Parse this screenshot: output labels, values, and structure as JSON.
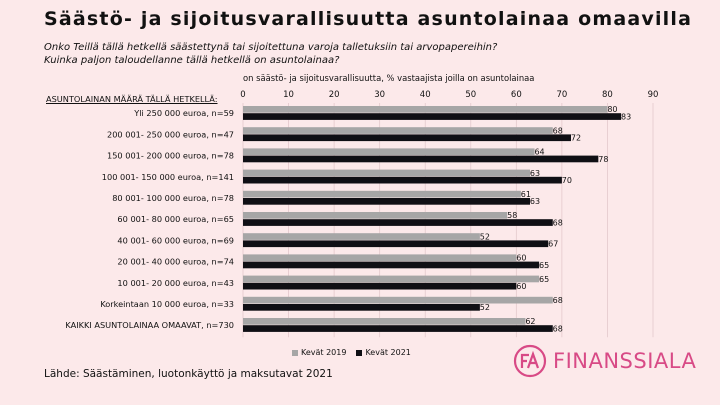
{
  "title": "Säästö- ja sijoitusvarallisuutta asuntolainaa omaavilla",
  "subtitle_line1": "Onko Teillä tällä hetkellä säästettynä tai sijoitettuna varoja talletuksiin tai arvopapereihin?",
  "subtitle_line2": "Kuinka paljon taloudellanne tällä hetkellä on asuntolainaa?",
  "row_header": "ASUNTOLAINAN MÄÄRÄ TÄLLÄ HETKELLÄ:",
  "source": "Lähde: Säästäminen, luotonkäyttö ja maksutavat 2021",
  "logo": {
    "mark": "FA",
    "text": "FINANSSIALA"
  },
  "colors": {
    "series_2019": "#a6a6a6",
    "series_2021": "#0f0f14",
    "background": "#fce9ea",
    "brand": "#d84a86"
  },
  "chart_data": {
    "type": "bar",
    "orientation": "horizontal",
    "xlabel": "on säästö- ja sijoitusvarallisuutta, % vastaajista joilla on asuntolainaa",
    "xlim": [
      0,
      90
    ],
    "xticks": [
      0,
      10,
      20,
      30,
      40,
      50,
      60,
      70,
      80,
      90
    ],
    "grid": true,
    "legend_position": "bottom",
    "categories": [
      "Yli 250 000 euroa, n=59",
      "200 001- 250 000 euroa, n=47",
      "150 001- 200 000 euroa, n=78",
      "100 001- 150 000 euroa, n=141",
      "80 001- 100 000 euroa, n=78",
      "60 001- 80 000 euroa, n=65",
      "40 001- 60 000 euroa, n=69",
      "20 001- 40 000 euroa, n=74",
      "10 001- 20 000 euroa, n=43",
      "Korkeintaan 10 000 euroa, n=33",
      "KAIKKI ASUNTOLAINAA OMAAVAT, n=730"
    ],
    "series": [
      {
        "name": "Kevät 2019",
        "values": [
          80,
          68,
          64,
          63,
          61,
          58,
          52,
          60,
          65,
          68,
          62
        ]
      },
      {
        "name": "Kevät 2021",
        "values": [
          83,
          72,
          78,
          70,
          63,
          68,
          67,
          65,
          60,
          52,
          68
        ]
      }
    ]
  }
}
